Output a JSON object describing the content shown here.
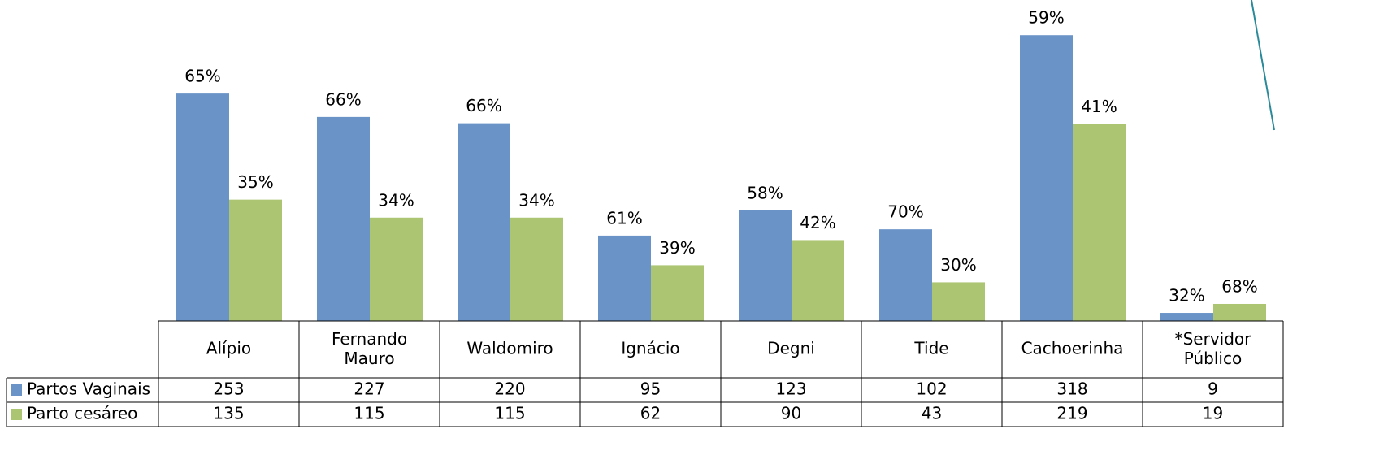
{
  "chart_data": {
    "type": "bar",
    "categories": [
      "Alípio",
      "Fernando Mauro",
      "Waldomiro",
      "Ignácio",
      "Degni",
      "Tide",
      "Cachoerinha",
      "*Servidor Público"
    ],
    "series": [
      {
        "name": "Partos Vaginais",
        "color": "#6a93c8",
        "values": [
          253,
          227,
          220,
          95,
          123,
          102,
          318,
          9
        ],
        "percentages": [
          "65%",
          "66%",
          "66%",
          "61%",
          "58%",
          "70%",
          "59%",
          "32%"
        ]
      },
      {
        "name": "Parto cesáreo",
        "color": "#abc572",
        "values": [
          135,
          115,
          115,
          62,
          90,
          43,
          219,
          19
        ],
        "percentages": [
          "35%",
          "34%",
          "34%",
          "39%",
          "42%",
          "30%",
          "41%",
          "68%"
        ]
      }
    ],
    "ylim": [
      0,
      320
    ]
  }
}
